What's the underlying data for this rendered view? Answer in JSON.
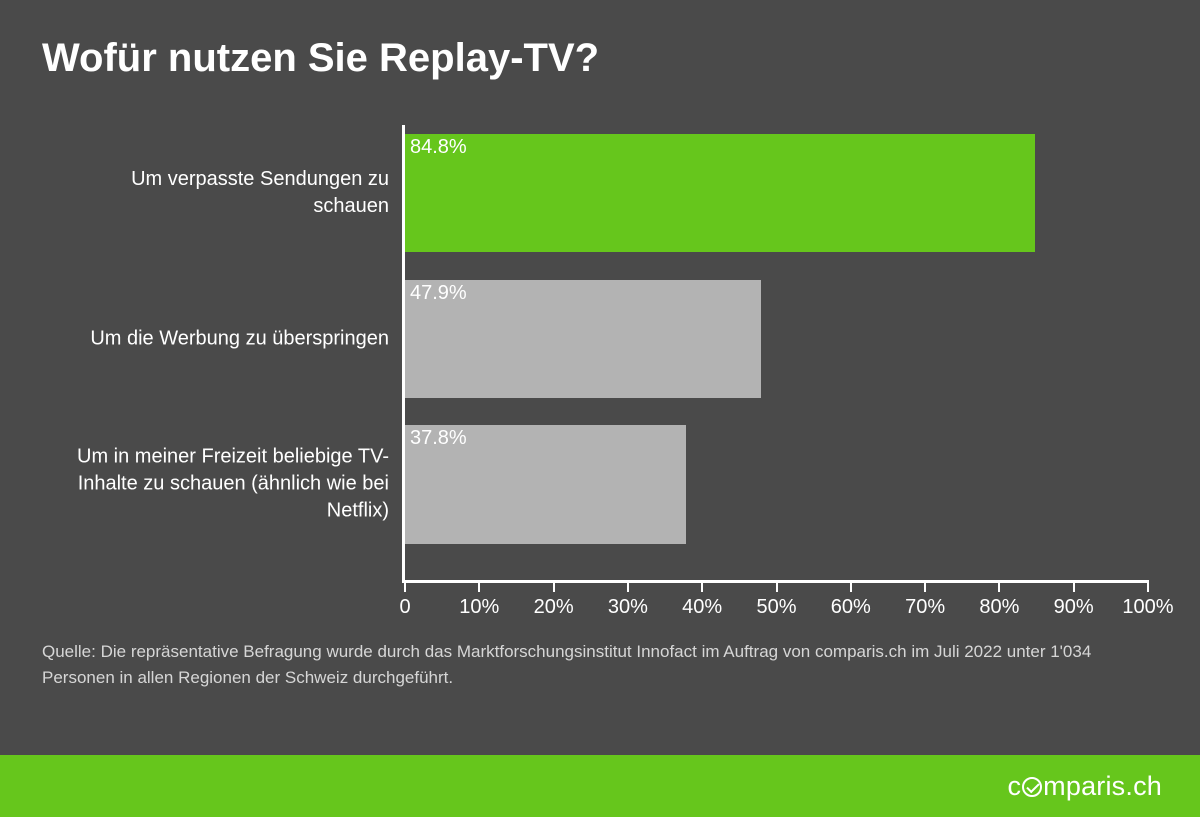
{
  "title": "Wofür nutzen Sie Replay-TV?",
  "chart": {
    "type": "bar-horizontal",
    "xlim": [
      0,
      100
    ],
    "xtick_step": 10,
    "xtick_labels": [
      "0",
      "10%",
      "20%",
      "30%",
      "40%",
      "50%",
      "60%",
      "70%",
      "80%",
      "90%",
      "100%"
    ],
    "bar_height_pct": 26,
    "bar_gap_pct": 6,
    "categories": [
      {
        "label": "Um verpasste Sendungen zu schauen",
        "value": 84.8,
        "display": "84.8%",
        "color": "#66c61c"
      },
      {
        "label": "Um die Werbung zu überspringen",
        "value": 47.9,
        "display": "47.9%",
        "color": "#b3b3b3"
      },
      {
        "label": "Um in meiner Freizeit beliebige TV-Inhalte zu schauen (ähnlich wie bei Netflix)",
        "value": 37.8,
        "display": "37.8%",
        "color": "#b3b3b3"
      }
    ],
    "axis_color": "#ffffff",
    "background_color": "#4a4a4a",
    "label_fontsize": 20,
    "tick_fontsize": 20,
    "bar_label_color": "#ffffff"
  },
  "footnote": "Quelle: Die repräsentative Befragung wurde durch das Marktforschungsinstitut Innofact im Auftrag von comparis.ch im Juli 2022 unter 1'034 Personen in allen Regionen der Schweiz durchgeführt.",
  "footer": {
    "brand_prefix": "c",
    "brand_suffix": "mparis.ch",
    "background_color": "#66c61c",
    "text_color": "#ffffff"
  }
}
